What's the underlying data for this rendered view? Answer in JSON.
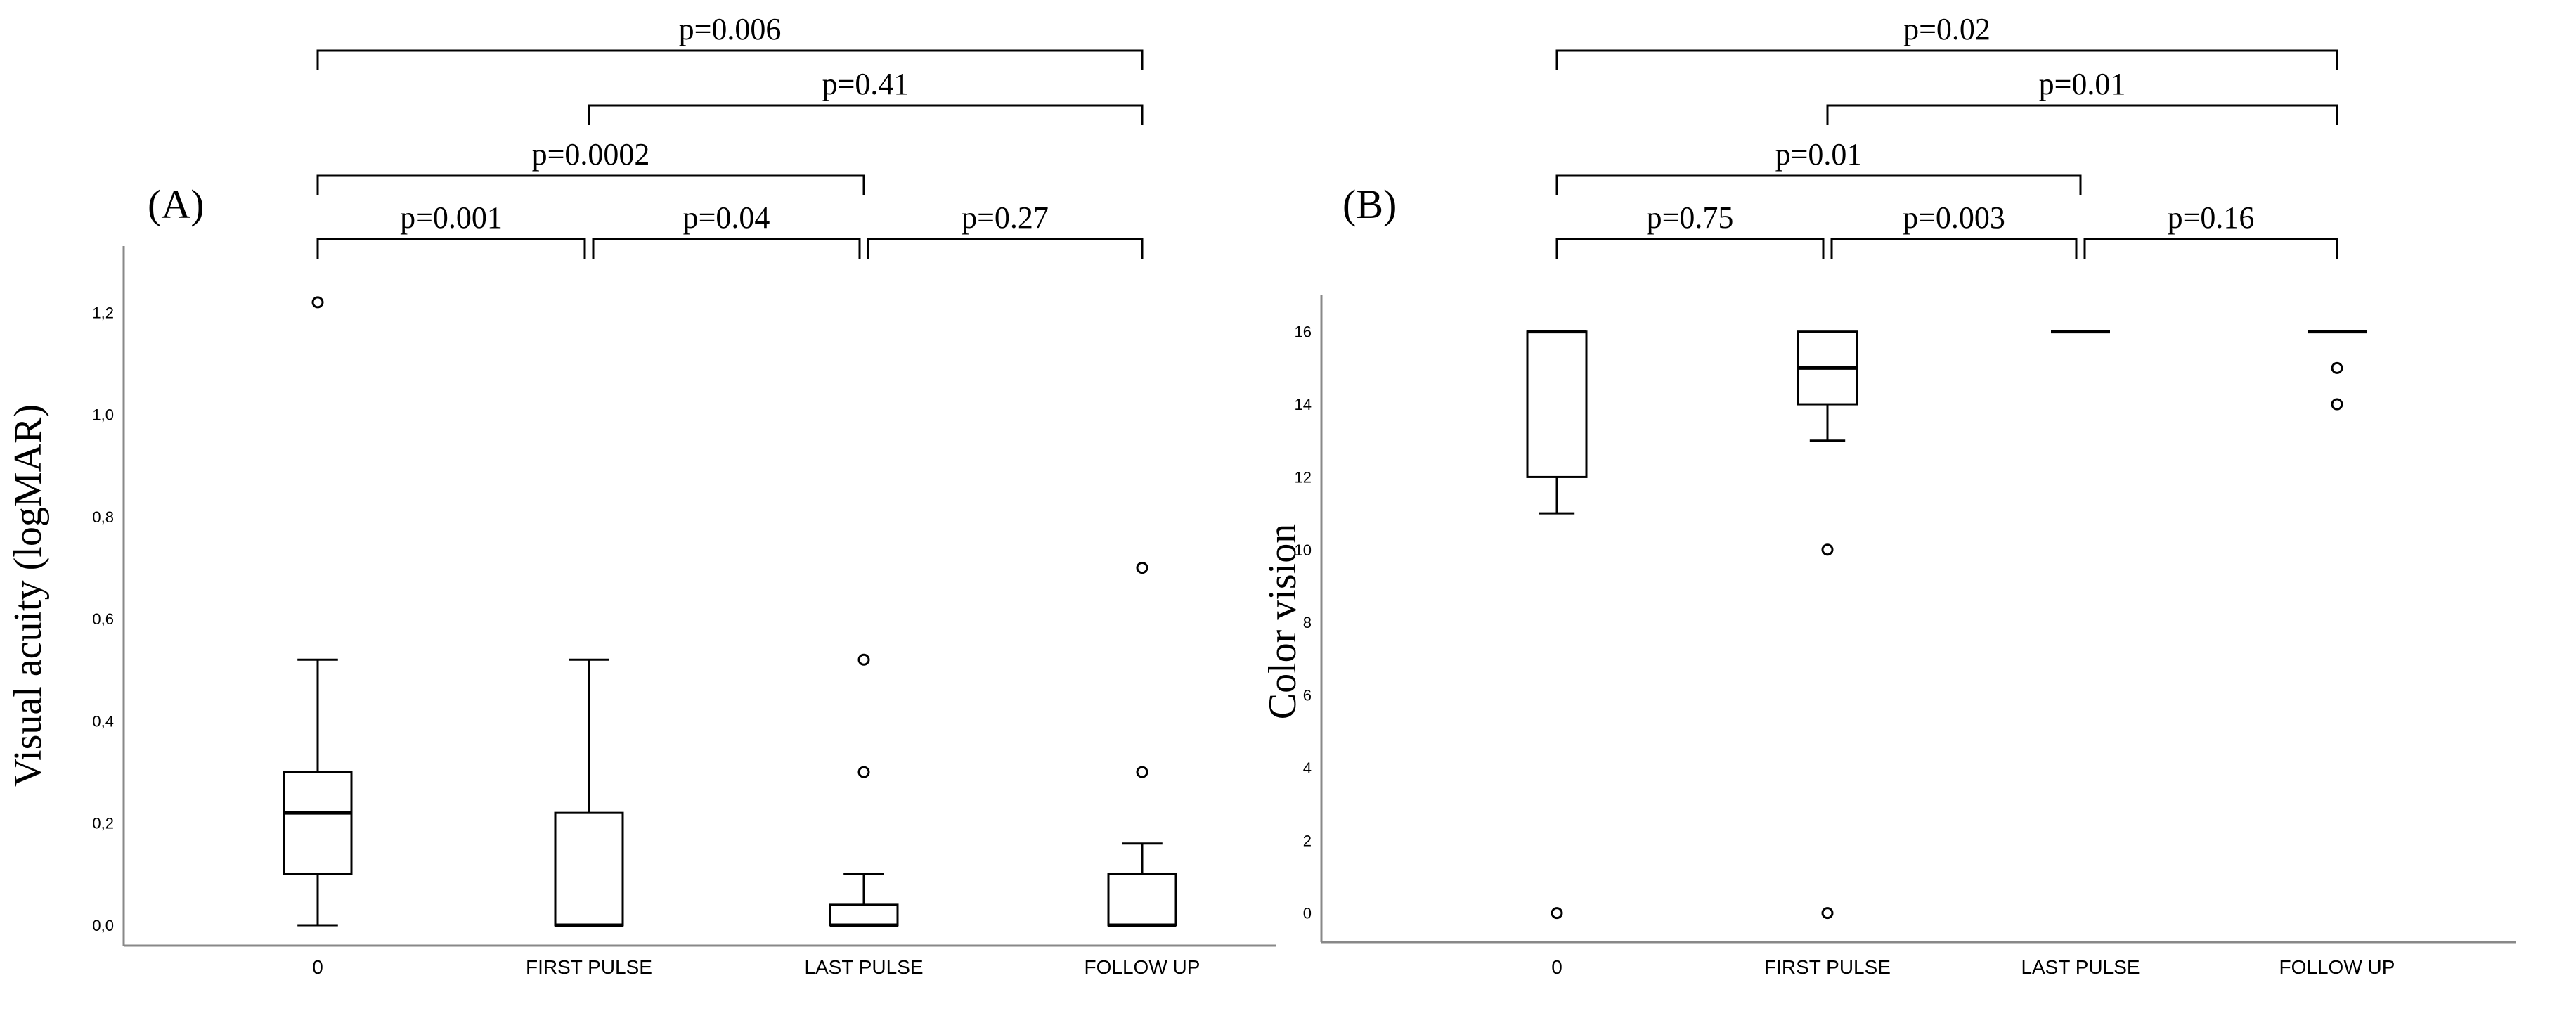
{
  "chart_data": [
    {
      "type": "box",
      "panel_label": "(A)",
      "ylabel": "Visual acuity (logMAR)",
      "ylim": [
        -0.04,
        1.33
      ],
      "yticks": [
        "0,0",
        "0,2",
        "0,4",
        "0,6",
        "0,8",
        "1,0",
        "1,2"
      ],
      "ytick_values": [
        0.0,
        0.2,
        0.4,
        0.6,
        0.8,
        1.0,
        1.2
      ],
      "categories": [
        "0",
        "FIRST PULSE",
        "LAST PULSE",
        "FOLLOW UP"
      ],
      "boxes": [
        {
          "whisker_low": 0.0,
          "q1": 0.1,
          "median": 0.22,
          "q3": 0.3,
          "whisker_high": 0.52,
          "outliers": [
            1.22
          ]
        },
        {
          "whisker_low": 0.0,
          "q1": 0.0,
          "median": 0.0,
          "q3": 0.22,
          "whisker_high": 0.52,
          "outliers": []
        },
        {
          "whisker_low": 0.0,
          "q1": 0.0,
          "median": 0.0,
          "q3": 0.04,
          "whisker_high": 0.1,
          "outliers": [
            0.3,
            0.52
          ]
        },
        {
          "whisker_low": 0.0,
          "q1": 0.0,
          "median": 0.0,
          "q3": 0.1,
          "whisker_high": 0.16,
          "outliers": [
            0.3,
            0.7
          ]
        }
      ],
      "comparisons": [
        {
          "from": 0,
          "to": 1,
          "label": "p=0.001",
          "level": 0
        },
        {
          "from": 1,
          "to": 2,
          "label": "p=0.04",
          "level": 0
        },
        {
          "from": 2,
          "to": 3,
          "label": "p=0.27",
          "level": 0
        },
        {
          "from": 0,
          "to": 2,
          "label": "p=0.0002",
          "level": 1
        },
        {
          "from": 1,
          "to": 3,
          "label": "p=0.41",
          "level": 2
        },
        {
          "from": 0,
          "to": 3,
          "label": "p=0.006",
          "level": 3
        }
      ]
    },
    {
      "type": "box",
      "panel_label": "(B)",
      "ylabel": "Color vision",
      "ylim": [
        -0.8,
        17.0
      ],
      "yticks": [
        "0",
        "2",
        "4",
        "6",
        "8",
        "10",
        "12",
        "14",
        "16"
      ],
      "ytick_values": [
        0,
        2,
        4,
        6,
        8,
        10,
        12,
        14,
        16
      ],
      "categories": [
        "0",
        "FIRST PULSE",
        "LAST PULSE",
        "FOLLOW UP"
      ],
      "boxes": [
        {
          "whisker_low": 11,
          "q1": 12,
          "median": 16,
          "q3": 16,
          "whisker_high": 16,
          "outliers": [
            0
          ]
        },
        {
          "whisker_low": 13,
          "q1": 14,
          "median": 15,
          "q3": 16,
          "whisker_high": 16,
          "outliers": [
            10,
            0
          ]
        },
        {
          "whisker_low": 16,
          "q1": 16,
          "median": 16,
          "q3": 16,
          "whisker_high": 16,
          "outliers": []
        },
        {
          "whisker_low": 16,
          "q1": 16,
          "median": 16,
          "q3": 16,
          "whisker_high": 16,
          "outliers": [
            15,
            14
          ]
        }
      ],
      "comparisons": [
        {
          "from": 0,
          "to": 1,
          "label": "p=0.75",
          "level": 0
        },
        {
          "from": 1,
          "to": 2,
          "label": "p=0.003",
          "level": 0
        },
        {
          "from": 2,
          "to": 3,
          "label": "p=0.16",
          "level": 0
        },
        {
          "from": 0,
          "to": 2,
          "label": "p=0.01",
          "level": 1
        },
        {
          "from": 1,
          "to": 3,
          "label": "p=0.01",
          "level": 2
        },
        {
          "from": 0,
          "to": 3,
          "label": "p=0.02",
          "level": 3
        }
      ]
    }
  ]
}
